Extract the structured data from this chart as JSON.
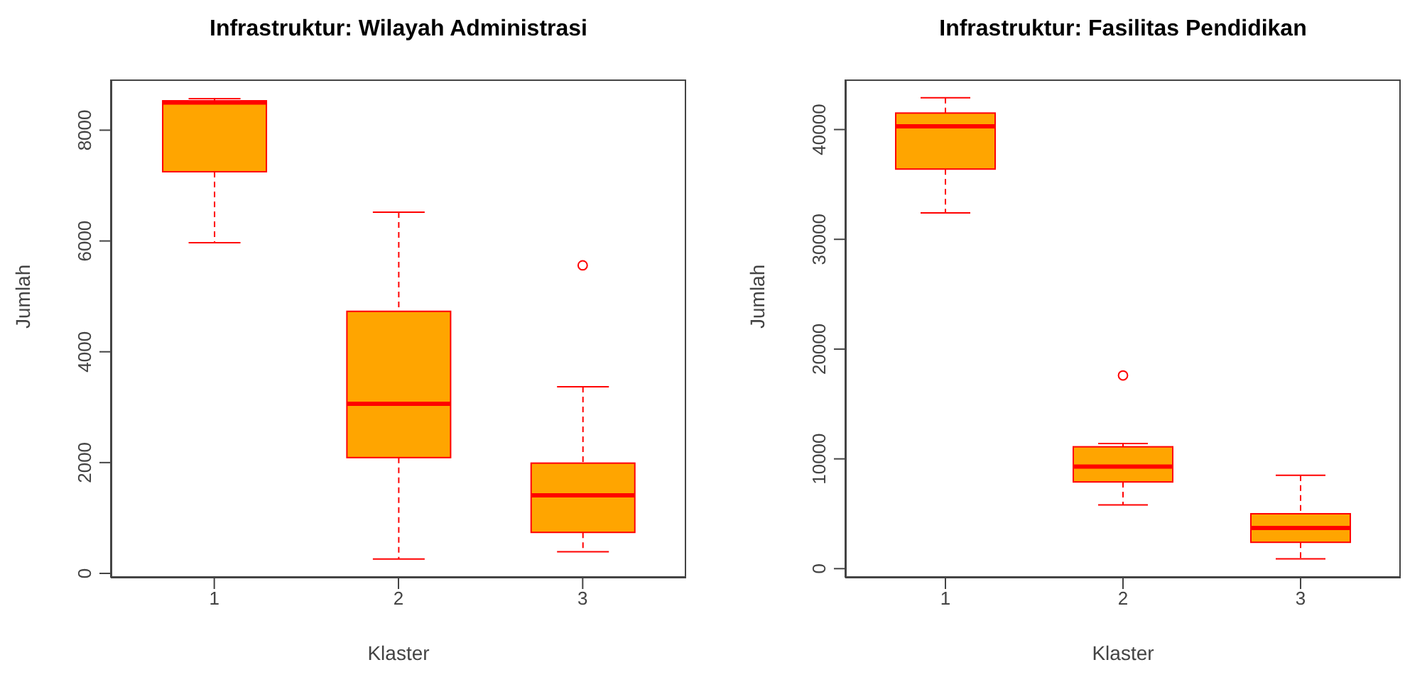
{
  "chart_data": [
    {
      "type": "box",
      "title": "Infrastruktur: Wilayah Administrasi",
      "xlabel": "Klaster",
      "ylabel": "Jumlah",
      "categories": [
        "1",
        "2",
        "3"
      ],
      "color": "#ffa500",
      "ylim": [
        -77,
        8915
      ],
      "yticks": [
        0,
        2000,
        4000,
        6000,
        8000
      ],
      "grid": false,
      "legend": false,
      "boxes": [
        {
          "low": 5970,
          "q1": 7250,
          "median": 8500,
          "q3": 8530,
          "high": 8570
        },
        {
          "low": 260,
          "q1": 2090,
          "median": 3060,
          "q3": 4730,
          "high": 6520
        },
        {
          "low": 390,
          "q1": 740,
          "median": 1410,
          "q3": 1990,
          "high": 3370,
          "outliers": [
            5560
          ]
        }
      ]
    },
    {
      "type": "box",
      "title": "Infrastruktur: Fasilitas Pendidikan",
      "xlabel": "Klaster",
      "ylabel": "Jumlah",
      "categories": [
        "1",
        "2",
        "3"
      ],
      "color": "#ffa500",
      "ylim": [
        -820,
        44560
      ],
      "yticks": [
        0,
        10000,
        20000,
        30000,
        40000
      ],
      "grid": false,
      "legend": false,
      "boxes": [
        {
          "low": 32400,
          "q1": 36400,
          "median": 40300,
          "q3": 41500,
          "high": 42900
        },
        {
          "low": 5800,
          "q1": 7900,
          "median": 9300,
          "q3": 11100,
          "high": 11400,
          "outliers": [
            17600
          ]
        },
        {
          "low": 900,
          "q1": 2400,
          "median": 3700,
          "q3": 5000,
          "high": 8500
        }
      ]
    }
  ]
}
